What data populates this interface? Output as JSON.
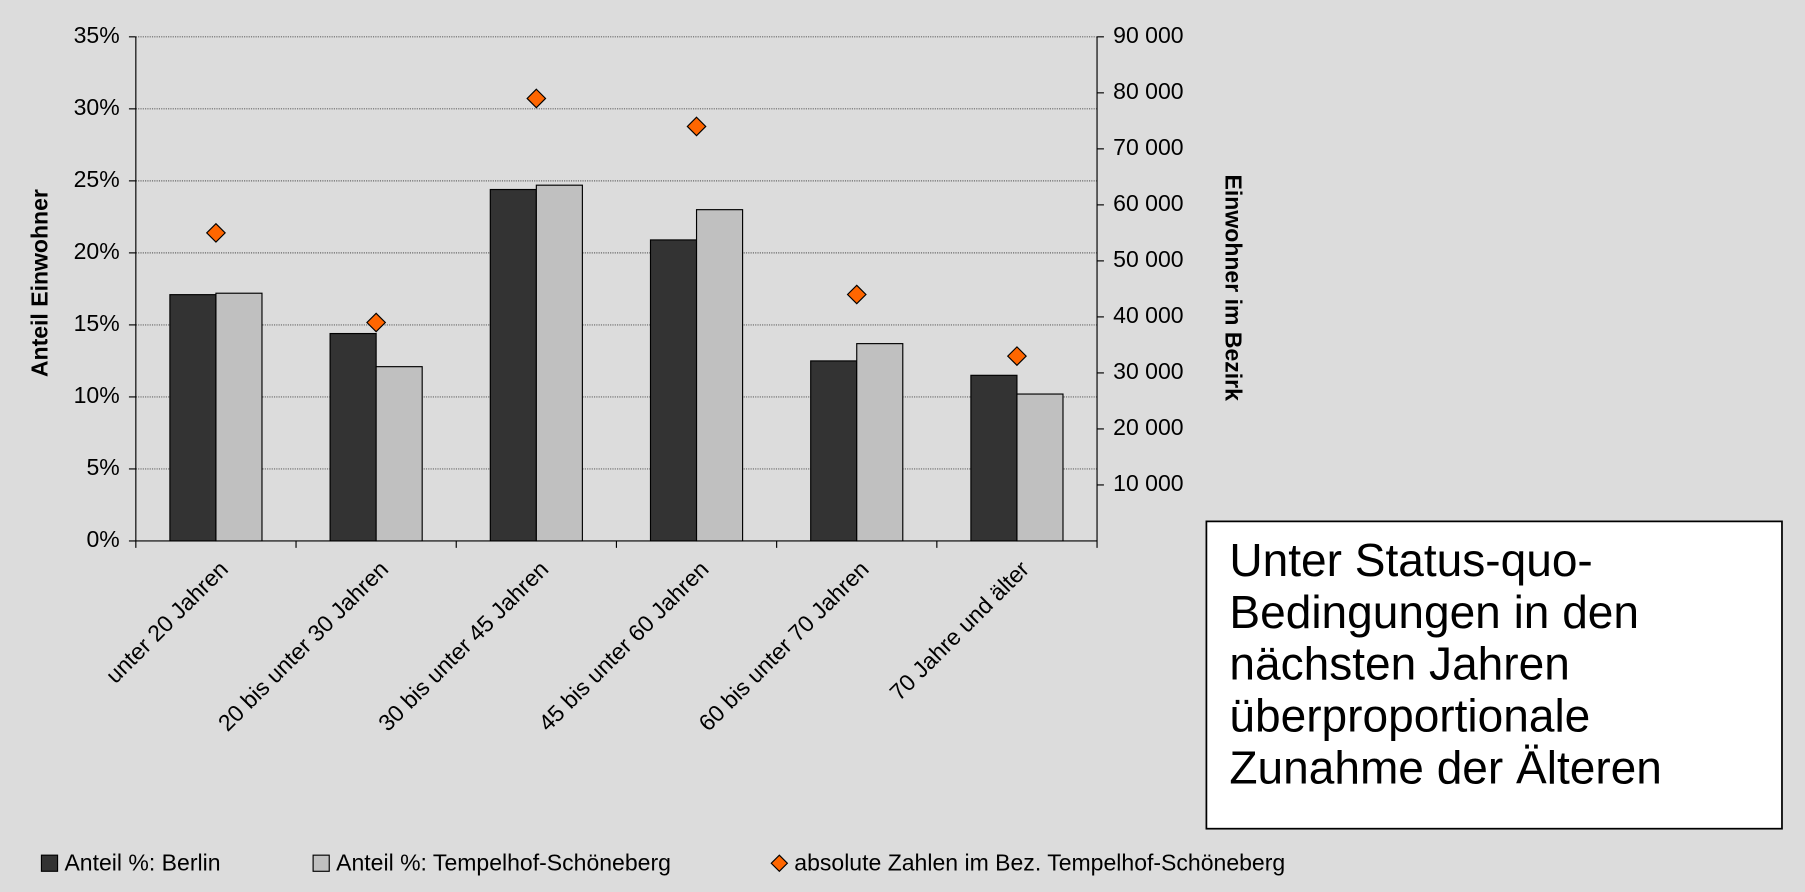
{
  "chart_data": {
    "type": "bar",
    "categories": [
      "unter 20 Jahren",
      "20 bis unter 30 Jahren",
      "30 bis unter 45 Jahren",
      "45 bis unter 60 Jahren",
      "60 bis unter 70 Jahren",
      "70 Jahre und älter"
    ],
    "series": [
      {
        "name": "Anteil %: Berlin",
        "color": "#333333",
        "values": [
          17.1,
          14.4,
          24.4,
          20.9,
          12.5,
          11.5
        ]
      },
      {
        "name": "Anteil %: Tempelhof-Schöneberg",
        "color": "#c0c0c0",
        "values": [
          17.2,
          12.1,
          24.7,
          23.0,
          13.7,
          10.2
        ]
      },
      {
        "name": "absolute Zahlen im Bez. Tempelhof-Schöneberg",
        "color": "#ff6600",
        "type": "scatter",
        "axis": "y2",
        "values": [
          55000,
          39000,
          79000,
          74000,
          44000,
          33000
        ]
      }
    ],
    "ylabel": "Anteil Einwohner",
    "y2label": "Einwohner im Bezirk",
    "ylim": [
      0,
      35
    ],
    "yticks": [
      {
        "value": 0,
        "label": "0%"
      },
      {
        "value": 5,
        "label": "5%"
      },
      {
        "value": 10,
        "label": "10%"
      },
      {
        "value": 15,
        "label": "15%"
      },
      {
        "value": 20,
        "label": "20%"
      },
      {
        "value": 25,
        "label": "25%"
      },
      {
        "value": 30,
        "label": "30%"
      },
      {
        "value": 35,
        "label": "35%"
      }
    ],
    "y2lim": [
      0,
      90000
    ],
    "y2ticks": [
      {
        "value": 10000,
        "label": "10 000"
      },
      {
        "value": 20000,
        "label": "20 000"
      },
      {
        "value": 30000,
        "label": "30 000"
      },
      {
        "value": 40000,
        "label": "40 000"
      },
      {
        "value": 50000,
        "label": "50 000"
      },
      {
        "value": 60000,
        "label": "60 000"
      },
      {
        "value": 70000,
        "label": "70 000"
      },
      {
        "value": 80000,
        "label": "80 000"
      },
      {
        "value": 90000,
        "label": "90 000"
      }
    ],
    "grid": true,
    "legend": "bottom",
    "annotation": [
      "Unter Status-quo-",
      "Bedingungen in den",
      "nächsten Jahren",
      "überproportionale",
      "Zunahme der Älteren"
    ]
  }
}
